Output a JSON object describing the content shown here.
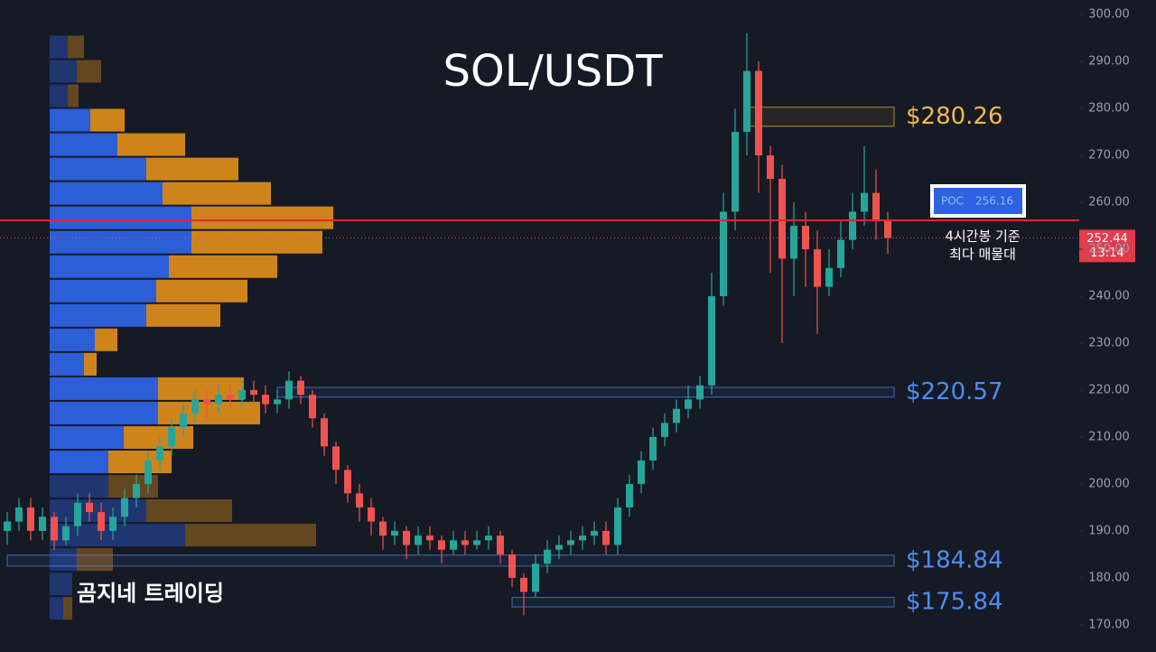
{
  "chart_data": {
    "type": "candlestick",
    "title": "SOL/USDT",
    "watermark": "곰지네 트레이딩",
    "ylim": [
      164.2,
      303.1
    ],
    "yticks": [
      {
        "value": 170,
        "label": "170.00"
      },
      {
        "value": 180,
        "label": "180.00"
      },
      {
        "value": 190,
        "label": "190.00"
      },
      {
        "value": 200,
        "label": "200.00"
      },
      {
        "value": 210,
        "label": "210.00"
      },
      {
        "value": 220,
        "label": "220.00"
      },
      {
        "value": 230,
        "label": "230.00"
      },
      {
        "value": 240,
        "label": "240.00"
      },
      {
        "value": 250,
        "label": "250.00"
      },
      {
        "value": 260,
        "label": "260.00"
      },
      {
        "value": 270,
        "label": "270.00"
      },
      {
        "value": 280,
        "label": "280.00"
      },
      {
        "value": 290,
        "label": "290.00"
      },
      {
        "value": 300,
        "label": "300.00"
      }
    ],
    "up_color": "#26a69a",
    "down_color": "#ef5350",
    "open": [
      190,
      192,
      195,
      190,
      193,
      188,
      191,
      196,
      194,
      190,
      193,
      197,
      200,
      205,
      208,
      212,
      215,
      218,
      217,
      219,
      218,
      220,
      219,
      217,
      218,
      222,
      219,
      214,
      208,
      203,
      198,
      195,
      192,
      189,
      190,
      187,
      189,
      188,
      186,
      188,
      187,
      188,
      189,
      185,
      180,
      177,
      183,
      186,
      187,
      188,
      189,
      190,
      187,
      195,
      200,
      205,
      210,
      213,
      216,
      218,
      221,
      240,
      258,
      275,
      288,
      270,
      265,
      248,
      255,
      250,
      242,
      246,
      252,
      258,
      262,
      256
    ],
    "high": [
      194,
      197,
      197,
      195,
      194,
      193,
      198,
      198,
      196,
      195,
      199,
      202,
      207,
      210,
      214,
      217,
      220,
      220,
      221,
      221,
      222,
      222,
      221,
      220,
      224,
      223,
      220,
      215,
      209,
      204,
      200,
      197,
      193,
      192,
      191,
      191,
      191,
      189,
      190,
      190,
      190,
      191,
      190,
      186,
      181,
      185,
      188,
      189,
      190,
      191,
      192,
      192,
      197,
      202,
      207,
      212,
      215,
      218,
      221,
      223,
      245,
      262,
      280,
      296,
      290,
      272,
      268,
      260,
      258,
      254,
      250,
      256,
      262,
      272,
      267,
      258
    ],
    "low": [
      187,
      190,
      188,
      188,
      186,
      187,
      189,
      192,
      188,
      188,
      191,
      195,
      198,
      203,
      206,
      210,
      213,
      214,
      215,
      216,
      216,
      217,
      215,
      215,
      216,
      217,
      212,
      206,
      200,
      196,
      192,
      189,
      186,
      187,
      184,
      185,
      186,
      183,
      185,
      185,
      186,
      186,
      183,
      178,
      172,
      176,
      181,
      184,
      185,
      186,
      187,
      185,
      185,
      193,
      198,
      203,
      208,
      211,
      214,
      216,
      219,
      238,
      254,
      270,
      262,
      245,
      230,
      240,
      242,
      232,
      240,
      244,
      250,
      255,
      252,
      249
    ],
    "close": [
      192,
      195,
      190,
      193,
      188,
      191,
      196,
      194,
      190,
      193,
      197,
      200,
      205,
      208,
      212,
      215,
      218,
      217,
      219,
      218,
      220,
      219,
      217,
      218,
      222,
      219,
      214,
      208,
      203,
      198,
      195,
      192,
      189,
      190,
      187,
      189,
      188,
      186,
      188,
      187,
      188,
      189,
      185,
      180,
      177,
      183,
      186,
      187,
      188,
      189,
      190,
      187,
      195,
      200,
      205,
      210,
      213,
      216,
      218,
      221,
      240,
      258,
      275,
      288,
      270,
      265,
      248,
      255,
      250,
      242,
      246,
      252,
      258,
      262,
      256,
      252.44
    ],
    "poc_label": "POC",
    "poc_value": 256.16,
    "poc_color": "#e0262e",
    "poc_note": [
      "4시간봉 기준",
      "최다 매물대"
    ],
    "last_price": 252.44,
    "countdown": "13:14",
    "zones": [
      {
        "label": "$280.26",
        "value": 280.26,
        "low": 276.2,
        "start": 63,
        "color": "#f5b942"
      },
      {
        "label": "$220.57",
        "value": 220.57,
        "low": 218.5,
        "start": 23,
        "color": "#4c8df6"
      },
      {
        "label": "$184.84",
        "value": 184.84,
        "low": 182.5,
        "start": 0,
        "color": "#4c8df6"
      },
      {
        "label": "$175.84",
        "value": 175.84,
        "low": 173.8,
        "start": 43,
        "color": "#4c8df6"
      }
    ],
    "volume_profile": {
      "levels": [
        293.1,
        287.9,
        282.7,
        277.5,
        272.3,
        267.1,
        261.9,
        256.7,
        251.5,
        246.3,
        241.1,
        235.9,
        230.7,
        225.5,
        220.3,
        215.1,
        209.9,
        204.7,
        199.5,
        194.3,
        189.1,
        183.9,
        178.7,
        173.5
      ],
      "buy": [
        20,
        30,
        20,
        45,
        75,
        107,
        125,
        157,
        157,
        132,
        118,
        107,
        50,
        38,
        120,
        120,
        82,
        65,
        65,
        107,
        150,
        30,
        25,
        15
      ],
      "sell": [
        18,
        27,
        12,
        38,
        75,
        102,
        120,
        157,
        145,
        120,
        101,
        82,
        25,
        14,
        95,
        113,
        77,
        70,
        55,
        95,
        145,
        40,
        0,
        10
      ],
      "value_area": [
        203,
        280
      ],
      "buy_color": "#2d62e0",
      "sell_color": "#d98a1a"
    }
  }
}
